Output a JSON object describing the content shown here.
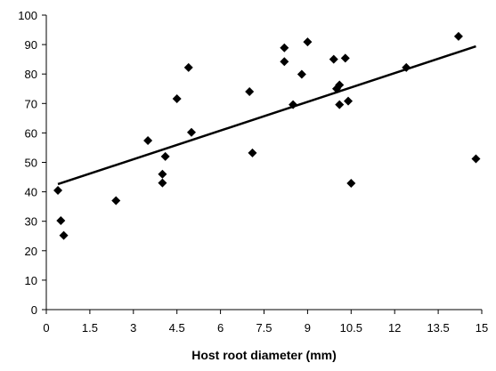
{
  "chart_data": {
    "type": "scatter",
    "title": "",
    "xlabel": "Host root diameter (mm)",
    "ylabel": "",
    "xlim": [
      0,
      15
    ],
    "ylim": [
      0,
      100
    ],
    "x_ticks": [
      "0",
      "1.5",
      "3",
      "4.5",
      "6",
      "7.5",
      "9",
      "10.5",
      "12",
      "13.5",
      "15"
    ],
    "y_ticks": [
      "0",
      "10",
      "20",
      "30",
      "40",
      "50",
      "60",
      "70",
      "80",
      "90",
      "100"
    ],
    "grid": false,
    "legend": "none",
    "marker": "diamond",
    "marker_color": "#000000",
    "points": [
      {
        "x": 0.4,
        "y": 40.5
      },
      {
        "x": 0.5,
        "y": 30.2
      },
      {
        "x": 0.6,
        "y": 25.2
      },
      {
        "x": 2.4,
        "y": 37.0
      },
      {
        "x": 3.5,
        "y": 57.4
      },
      {
        "x": 4.0,
        "y": 46.0
      },
      {
        "x": 4.0,
        "y": 43.0
      },
      {
        "x": 4.1,
        "y": 52.0
      },
      {
        "x": 4.5,
        "y": 71.6
      },
      {
        "x": 4.9,
        "y": 82.2
      },
      {
        "x": 5.0,
        "y": 60.2
      },
      {
        "x": 7.0,
        "y": 74.0
      },
      {
        "x": 7.1,
        "y": 53.2
      },
      {
        "x": 8.2,
        "y": 88.9
      },
      {
        "x": 8.2,
        "y": 84.2
      },
      {
        "x": 8.5,
        "y": 69.6
      },
      {
        "x": 8.8,
        "y": 79.9
      },
      {
        "x": 9.0,
        "y": 90.9
      },
      {
        "x": 9.9,
        "y": 85.0
      },
      {
        "x": 10.0,
        "y": 75.0
      },
      {
        "x": 10.1,
        "y": 76.3
      },
      {
        "x": 10.1,
        "y": 69.6
      },
      {
        "x": 10.3,
        "y": 85.4
      },
      {
        "x": 10.4,
        "y": 70.8
      },
      {
        "x": 10.5,
        "y": 42.9
      },
      {
        "x": 12.4,
        "y": 82.2
      },
      {
        "x": 14.2,
        "y": 92.8
      },
      {
        "x": 14.8,
        "y": 51.2
      }
    ],
    "trendline": {
      "x": [
        0.4,
        14.8
      ],
      "y": [
        42.6,
        89.4
      ]
    }
  }
}
